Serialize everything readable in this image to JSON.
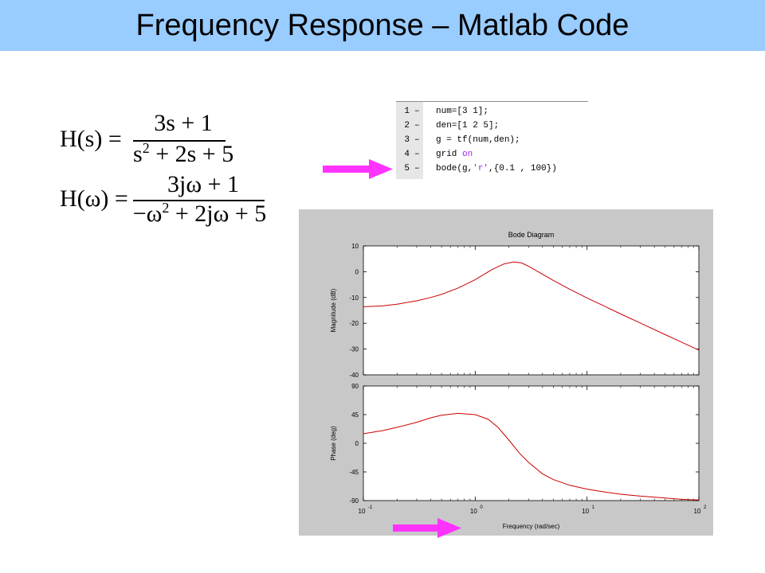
{
  "slide": {
    "title": "Frequency Response – Matlab Code"
  },
  "equations": {
    "hs": {
      "lhs": "H(s) =",
      "num": "3s + 1",
      "den_a": "s",
      "den_sup": "2",
      "den_b": " + 2s + 5"
    },
    "hw": {
      "lhs": "H(ω) =",
      "num": "3jω + 1",
      "den_a": "−ω",
      "den_sup": "2",
      "den_b": " + 2jω + 5"
    }
  },
  "code": {
    "lines": [
      {
        "num": "1",
        "dash": "–",
        "text": "num=[3 1];"
      },
      {
        "num": "2",
        "dash": "–",
        "text": "den=[1 2 5];"
      },
      {
        "num": "3",
        "dash": "–",
        "text": "g = tf(num,den);"
      },
      {
        "num": "4",
        "dash": "–",
        "text_a": "grid ",
        "text_kw": "on"
      },
      {
        "num": "5",
        "dash": "–",
        "text_a": "bode(g,",
        "text_str": "'r'",
        "text_b": ",{0.1 , 100})"
      }
    ]
  },
  "colors": {
    "title_bar": "#99ccff",
    "arrow": "#ff33ff",
    "curve": "#cc0000",
    "figure_bg": "#c8c8c8"
  },
  "icons": {
    "pointer_arrow_code": "arrow-right-icon",
    "pointer_arrow_axis": "arrow-right-icon"
  },
  "chart_data": [
    {
      "type": "line",
      "title": "Bode Diagram",
      "xlabel": "Frequency  (rad/sec)",
      "ylabel": "Magnitude (dB)",
      "xscale": "log",
      "xlim": [
        0.1,
        100
      ],
      "ylim": [
        -40,
        10
      ],
      "yticks": [
        "10",
        "0",
        "-10",
        "-20",
        "-30",
        "-40"
      ],
      "ytick_values": [
        10,
        0,
        -10,
        -20,
        -30,
        -40
      ],
      "grid": false,
      "series": [
        {
          "x": [
            0.1,
            0.15,
            0.2,
            0.3,
            0.4,
            0.5,
            0.7,
            1.0,
            1.4,
            1.8,
            2.2,
            2.6,
            3.0,
            4.0,
            5.0,
            7.0,
            10,
            15,
            20,
            30,
            50,
            70,
            100
          ],
          "y": [
            -13.6,
            -13.2,
            -12.6,
            -11.3,
            -10.0,
            -8.8,
            -6.4,
            -3.1,
            0.7,
            3.0,
            3.8,
            3.4,
            2.1,
            -1.0,
            -3.4,
            -6.8,
            -10.2,
            -13.8,
            -16.4,
            -19.9,
            -24.4,
            -27.3,
            -30.4
          ]
        }
      ]
    },
    {
      "type": "line",
      "xlabel": "Frequency  (rad/sec)",
      "ylabel": "Phase (deg)",
      "xscale": "log",
      "xlim": [
        0.1,
        100
      ],
      "ylim": [
        -90,
        90
      ],
      "yticks": [
        "90",
        "45",
        "0",
        "-45",
        "-90"
      ],
      "ytick_values": [
        90,
        45,
        0,
        -45,
        -90
      ],
      "xticks": [
        0.1,
        1,
        10,
        100
      ],
      "xtick_exponents": [
        "-1",
        "0",
        "1",
        "2"
      ],
      "grid": false,
      "series": [
        {
          "x": [
            0.1,
            0.15,
            0.2,
            0.3,
            0.4,
            0.5,
            0.7,
            1.0,
            1.3,
            1.6,
            2.0,
            2.5,
            3.0,
            4.0,
            5.0,
            7.0,
            10,
            15,
            20,
            30,
            50,
            70,
            100
          ],
          "y": [
            15,
            20,
            25,
            33,
            40,
            44,
            47,
            45,
            38,
            25,
            5,
            -16,
            -30,
            -48,
            -57,
            -66,
            -72,
            -77,
            -80,
            -83,
            -86,
            -88,
            -89
          ]
        }
      ]
    }
  ]
}
